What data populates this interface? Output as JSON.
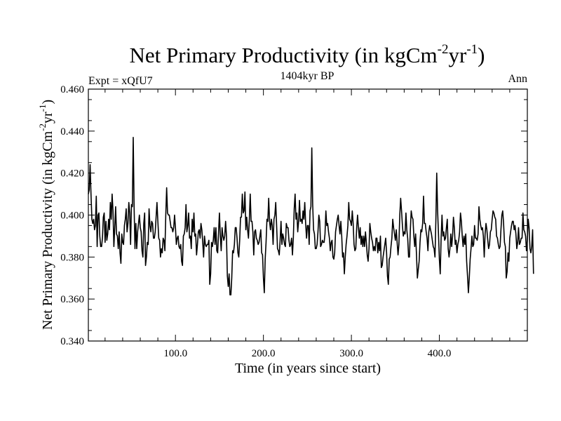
{
  "chart_data": {
    "type": "line",
    "title": {
      "main": "Net Primary Productivity (in kgCm",
      "sup1": "-2",
      "mid": "yr",
      "sup2": "-1",
      "end": ")"
    },
    "subtitle_left": "Expt = xQfU7",
    "subtitle_center": "1404kyr BP",
    "subtitle_right": "Ann",
    "xlabel": "Time (in years since start)",
    "ylabel": {
      "main": "Net Primary Productivity (in kgCm",
      "sup1": "-2",
      "mid": "yr",
      "sup2": "-1",
      "end": ")"
    },
    "xlim": [
      1,
      500
    ],
    "ylim": [
      0.34,
      0.46
    ],
    "xticks": [
      100,
      200,
      300,
      400
    ],
    "xtick_labels": [
      "100.0",
      "200.0",
      "300.0",
      "400.0"
    ],
    "yticks": [
      0.34,
      0.36,
      0.38,
      0.4,
      0.42,
      0.44,
      0.46
    ],
    "ytick_labels": [
      "0.340",
      "0.360",
      "0.380",
      "0.400",
      "0.420",
      "0.440",
      "0.460"
    ],
    "series": [
      {
        "name": "Net Primary Productivity",
        "color": "#000000",
        "x_start": 1,
        "x_step": 1,
        "values": [
          0.41,
          0.412,
          0.424,
          0.41,
          0.398,
          0.396,
          0.398,
          0.393,
          0.395,
          0.409,
          0.385,
          0.4,
          0.401,
          0.39,
          0.385,
          0.385,
          0.389,
          0.399,
          0.401,
          0.387,
          0.397,
          0.388,
          0.391,
          0.398,
          0.393,
          0.406,
          0.398,
          0.41,
          0.402,
          0.385,
          0.394,
          0.404,
          0.391,
          0.39,
          0.384,
          0.392,
          0.382,
          0.377,
          0.391,
          0.387,
          0.386,
          0.395,
          0.398,
          0.403,
          0.392,
          0.396,
          0.406,
          0.401,
          0.386,
          0.405,
          0.404,
          0.437,
          0.404,
          0.384,
          0.396,
          0.384,
          0.392,
          0.396,
          0.4,
          0.394,
          0.392,
          0.383,
          0.38,
          0.396,
          0.401,
          0.376,
          0.38,
          0.387,
          0.386,
          0.403,
          0.395,
          0.392,
          0.397,
          0.396,
          0.389,
          0.389,
          0.392,
          0.399,
          0.406,
          0.397,
          0.389,
          0.388,
          0.38,
          0.384,
          0.382,
          0.389,
          0.388,
          0.383,
          0.4,
          0.413,
          0.401,
          0.4,
          0.4,
          0.397,
          0.394,
          0.394,
          0.392,
          0.394,
          0.4,
          0.394,
          0.386,
          0.389,
          0.39,
          0.385,
          0.384,
          0.386,
          0.378,
          0.376,
          0.39,
          0.391,
          0.394,
          0.405,
          0.392,
          0.395,
          0.401,
          0.389,
          0.39,
          0.384,
          0.398,
          0.392,
          0.401,
          0.39,
          0.391,
          0.381,
          0.386,
          0.392,
          0.393,
          0.389,
          0.396,
          0.393,
          0.387,
          0.38,
          0.39,
          0.386,
          0.385,
          0.386,
          0.386,
          0.388,
          0.367,
          0.372,
          0.387,
          0.385,
          0.388,
          0.394,
          0.386,
          0.394,
          0.383,
          0.382,
          0.392,
          0.401,
          0.39,
          0.383,
          0.394,
          0.39,
          0.388,
          0.39,
          0.397,
          0.39,
          0.371,
          0.366,
          0.372,
          0.362,
          0.362,
          0.37,
          0.383,
          0.382,
          0.386,
          0.394,
          0.394,
          0.389,
          0.382,
          0.38,
          0.388,
          0.399,
          0.399,
          0.41,
          0.401,
          0.402,
          0.411,
          0.393,
          0.399,
          0.393,
          0.389,
          0.398,
          0.41,
          0.397,
          0.397,
          0.392,
          0.381,
          0.392,
          0.393,
          0.389,
          0.388,
          0.386,
          0.387,
          0.39,
          0.393,
          0.382,
          0.381,
          0.37,
          0.363,
          0.379,
          0.387,
          0.398,
          0.397,
          0.408,
          0.397,
          0.393,
          0.398,
          0.395,
          0.386,
          0.398,
          0.4,
          0.406,
          0.395,
          0.384,
          0.383,
          0.381,
          0.388,
          0.397,
          0.386,
          0.391,
          0.389,
          0.386,
          0.385,
          0.396,
          0.394,
          0.394,
          0.388,
          0.385,
          0.386,
          0.389,
          0.381,
          0.389,
          0.403,
          0.41,
          0.398,
          0.401,
          0.392,
          0.397,
          0.407,
          0.397,
          0.398,
          0.396,
          0.402,
          0.398,
          0.406,
          0.396,
          0.389,
          0.395,
          0.395,
          0.386,
          0.402,
          0.404,
          0.432,
          0.405,
          0.393,
          0.391,
          0.384,
          0.384,
          0.386,
          0.392,
          0.4,
          0.397,
          0.385,
          0.386,
          0.388,
          0.387,
          0.387,
          0.391,
          0.402,
          0.395,
          0.396,
          0.392,
          0.389,
          0.383,
          0.387,
          0.388,
          0.38,
          0.379,
          0.382,
          0.392,
          0.395,
          0.398,
          0.4,
          0.395,
          0.391,
          0.397,
          0.39,
          0.38,
          0.382,
          0.372,
          0.38,
          0.386,
          0.39,
          0.395,
          0.406,
          0.398,
          0.397,
          0.395,
          0.402,
          0.396,
          0.386,
          0.383,
          0.384,
          0.394,
          0.4,
          0.394,
          0.389,
          0.394,
          0.386,
          0.39,
          0.385,
          0.39,
          0.385,
          0.392,
          0.387,
          0.381,
          0.378,
          0.384,
          0.396,
          0.392,
          0.389,
          0.387,
          0.383,
          0.385,
          0.383,
          0.389,
          0.389,
          0.382,
          0.387,
          0.383,
          0.39,
          0.375,
          0.376,
          0.38,
          0.383,
          0.386,
          0.389,
          0.382,
          0.371,
          0.367,
          0.379,
          0.38,
          0.385,
          0.389,
          0.398,
          0.394,
          0.391,
          0.388,
          0.393,
          0.387,
          0.381,
          0.386,
          0.4,
          0.408,
          0.402,
          0.395,
          0.39,
          0.392,
          0.391,
          0.401,
          0.393,
          0.389,
          0.38,
          0.38,
          0.393,
          0.402,
          0.399,
          0.398,
          0.39,
          0.385,
          0.391,
          0.381,
          0.37,
          0.374,
          0.378,
          0.387,
          0.393,
          0.392,
          0.396,
          0.409,
          0.396,
          0.396,
          0.392,
          0.389,
          0.383,
          0.392,
          0.395,
          0.393,
          0.391,
          0.388,
          0.385,
          0.384,
          0.38,
          0.397,
          0.42,
          0.402,
          0.391,
          0.379,
          0.372,
          0.389,
          0.4,
          0.39,
          0.392,
          0.388,
          0.389,
          0.394,
          0.398,
          0.384,
          0.38,
          0.384,
          0.391,
          0.385,
          0.39,
          0.399,
          0.394,
          0.386,
          0.388,
          0.382,
          0.386,
          0.388,
          0.392,
          0.401,
          0.397,
          0.39,
          0.385,
          0.39,
          0.386,
          0.391,
          0.378,
          0.371,
          0.363,
          0.37,
          0.379,
          0.384,
          0.39,
          0.385,
          0.386,
          0.395,
          0.389,
          0.389,
          0.388,
          0.391,
          0.404,
          0.398,
          0.395,
          0.393,
          0.394,
          0.39,
          0.38,
          0.391,
          0.396,
          0.393,
          0.388,
          0.384,
          0.386,
          0.392,
          0.393,
          0.398,
          0.402,
          0.401,
          0.399,
          0.398,
          0.39,
          0.389,
          0.386,
          0.384,
          0.385,
          0.393,
          0.4,
          0.402,
          0.396,
          0.387,
          0.385,
          0.37,
          0.373,
          0.382,
          0.378,
          0.389,
          0.392,
          0.395,
          0.397,
          0.397,
          0.393,
          0.395,
          0.391,
          0.384,
          0.387,
          0.394,
          0.386,
          0.387,
          0.389,
          0.389,
          0.401,
          0.393,
          0.392,
          0.39,
          0.383,
          0.388,
          0.398,
          0.394,
          0.384,
          0.382,
          0.385,
          0.393,
          0.372
        ]
      }
    ]
  }
}
